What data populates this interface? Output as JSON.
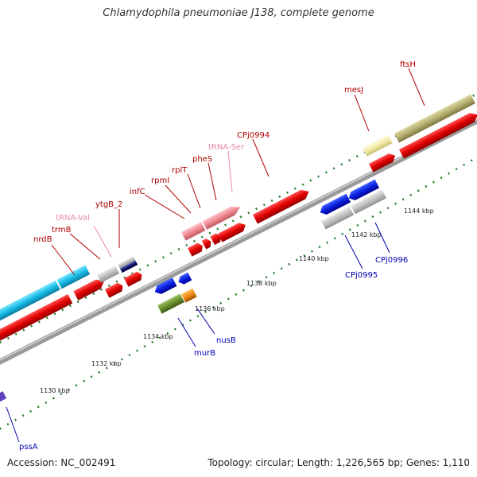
{
  "title": "Chlamydophila pneumoniae J138, complete genome",
  "footer": {
    "accession": "Accession: NC_002491",
    "summary": "Topology: circular; Length: 1,226,565 bp; Genes: 1,110"
  },
  "colors": {
    "forward_label": "#b00000",
    "reverse_label": "#0000b0",
    "rna_label": "#e88aa8",
    "backbone": "#7a7a7a",
    "tick": "#2a7a2a"
  },
  "ruler": [
    "1130 kbp",
    "1132 kbp",
    "1134 kbp",
    "1136 kbp",
    "1138 kbp",
    "1140 kbp",
    "1142 kbp",
    "1144 kbp"
  ],
  "genes_forward": [
    {
      "label": "nrdB",
      "color": "#e01010"
    },
    {
      "label": "trmB",
      "color": "#e01010"
    },
    {
      "label": "tRNA-Val",
      "color": "#f0a0b0"
    },
    {
      "label": "ytgB_2",
      "color": "#e01010"
    },
    {
      "label": "infC",
      "color": "#e01010"
    },
    {
      "label": "rpmI",
      "color": "#e01010"
    },
    {
      "label": "rplT",
      "color": "#e01010"
    },
    {
      "label": "pheS",
      "color": "#e01010"
    },
    {
      "label": "tRNA-Ser",
      "color": "#f0a0b0"
    },
    {
      "label": "CPj0994",
      "color": "#e01010"
    },
    {
      "label": "mesJ",
      "color": "#e01010"
    },
    {
      "label": "ftsH",
      "color": "#e01010"
    }
  ],
  "genes_reverse": [
    {
      "label": "pssA",
      "color": "#1030d0"
    },
    {
      "label": "murB",
      "color": "#1030d0"
    },
    {
      "label": "nusB",
      "color": "#1030d0"
    },
    {
      "label": "CPj0995",
      "color": "#1030d0"
    },
    {
      "label": "CPj0996",
      "color": "#1030d0"
    }
  ]
}
